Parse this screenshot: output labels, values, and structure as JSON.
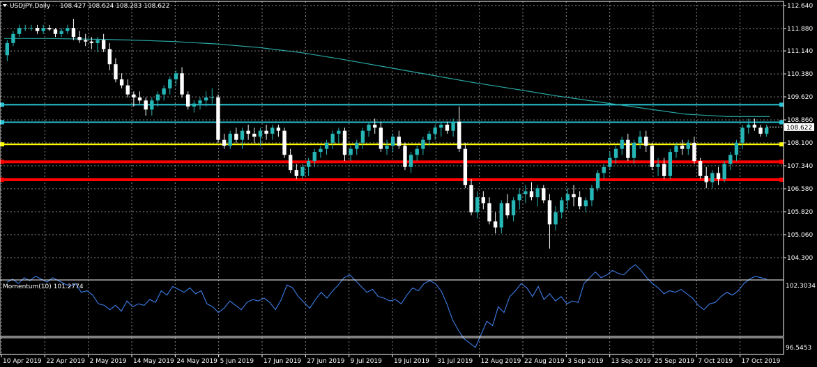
{
  "header": {
    "symbol_label": "USDJPY,Daily",
    "ohlc_label": "108.427 108.624 108.283 108.622"
  },
  "indicator": {
    "label": "Momentum(10) 101.2774",
    "ytick_top": "102.3034",
    "ytick_bottom": "96.5453"
  },
  "colors": {
    "background": "#000000",
    "grid": "#ffffff",
    "bull": "#26b6b6",
    "bear": "#ffffff",
    "ma": "#2aa9a6",
    "cyan_level": "#28c5d5",
    "yellow_level": "#ffff00",
    "red_level": "#ff0000",
    "momentum": "#3d7de8",
    "price_tag_bg": "#ffffff"
  },
  "chart_data": [
    {
      "type": "candlestick",
      "title": "USDJPY,Daily",
      "ylim": [
        104.3,
        112.64
      ],
      "y_ticks": [
        "112.640",
        "111.880",
        "111.140",
        "110.380",
        "109.620",
        "108.860",
        "108.100",
        "107.340",
        "106.580",
        "105.820",
        "105.060",
        "104.300"
      ],
      "x_ticks": [
        "10 Apr 2019",
        "22 Apr 2019",
        "2 May 2019",
        "14 May 2019",
        "24 May 2019",
        "5 Jun 2019",
        "17 Jun 2019",
        "27 Jun 2019",
        "9 Jul 2019",
        "19 Jul 2019",
        "31 Jul 2019",
        "12 Aug 2019",
        "22 Aug 2019",
        "3 Sep 2019",
        "13 Sep 2019",
        "25 Sep 2019",
        "7 Oct 2019",
        "17 Oct 2019"
      ],
      "current_price": "108.622",
      "moving_average": [
        111.55,
        111.55,
        111.53,
        111.5,
        111.45,
        111.37,
        111.25,
        111.08,
        110.85,
        110.6,
        110.35,
        110.1,
        109.88,
        109.65,
        109.45,
        109.25,
        109.05,
        108.97,
        108.97
      ],
      "horizontal_levels": [
        {
          "price": 109.36,
          "color": "cyan"
        },
        {
          "price": 108.78,
          "color": "cyan"
        },
        {
          "price": 108.05,
          "color": "yellow"
        },
        {
          "price": 107.47,
          "color": "red"
        },
        {
          "price": 106.88,
          "color": "red"
        }
      ],
      "candles": [
        [
          111.0,
          111.5,
          110.8,
          111.4
        ],
        [
          111.4,
          111.8,
          111.3,
          111.7
        ],
        [
          111.7,
          112.0,
          111.6,
          111.9
        ],
        [
          111.9,
          112.0,
          111.8,
          111.9
        ],
        [
          111.9,
          112.0,
          111.8,
          111.9
        ],
        [
          111.9,
          112.0,
          111.7,
          111.8
        ],
        [
          111.8,
          112.0,
          111.7,
          111.9
        ],
        [
          111.9,
          112.0,
          111.8,
          111.85
        ],
        [
          111.85,
          111.9,
          111.6,
          111.7
        ],
        [
          111.7,
          111.9,
          111.6,
          111.8
        ],
        [
          111.8,
          112.0,
          111.7,
          111.9
        ],
        [
          111.9,
          112.2,
          111.5,
          111.6
        ],
        [
          111.6,
          111.8,
          111.4,
          111.5
        ],
        [
          111.5,
          111.7,
          111.3,
          111.45
        ],
        [
          111.45,
          111.6,
          111.2,
          111.4
        ],
        [
          111.4,
          111.6,
          111.1,
          111.5
        ],
        [
          111.5,
          111.7,
          111.1,
          111.2
        ],
        [
          111.2,
          111.4,
          110.5,
          110.7
        ],
        [
          110.7,
          110.9,
          110.1,
          110.2
        ],
        [
          110.2,
          110.4,
          109.9,
          110.0
        ],
        [
          110.0,
          110.2,
          109.6,
          109.7
        ],
        [
          109.7,
          109.8,
          109.3,
          109.6
        ],
        [
          109.6,
          109.8,
          109.4,
          109.5
        ],
        [
          109.5,
          109.6,
          109.0,
          109.2
        ],
        [
          109.2,
          109.6,
          109.0,
          109.5
        ],
        [
          109.5,
          109.8,
          109.3,
          109.7
        ],
        [
          109.7,
          110.0,
          109.5,
          109.9
        ],
        [
          109.9,
          110.3,
          109.7,
          110.2
        ],
        [
          110.2,
          110.5,
          110.0,
          110.4
        ],
        [
          110.4,
          110.6,
          109.6,
          109.7
        ],
        [
          109.7,
          109.8,
          109.2,
          109.3
        ],
        [
          109.3,
          109.5,
          109.1,
          109.4
        ],
        [
          109.4,
          109.6,
          109.2,
          109.5
        ],
        [
          109.5,
          109.8,
          109.3,
          109.6
        ],
        [
          109.6,
          109.9,
          109.4,
          109.6
        ],
        [
          109.6,
          109.7,
          108.1,
          108.2
        ],
        [
          108.2,
          108.4,
          107.9,
          108.0
        ],
        [
          108.0,
          108.5,
          107.9,
          108.4
        ],
        [
          108.4,
          108.6,
          108.1,
          108.2
        ],
        [
          108.2,
          108.6,
          107.9,
          108.5
        ],
        [
          108.5,
          108.7,
          108.2,
          108.4
        ],
        [
          108.4,
          108.6,
          108.1,
          108.3
        ],
        [
          108.3,
          108.6,
          108.0,
          108.5
        ],
        [
          108.5,
          108.7,
          108.2,
          108.4
        ],
        [
          108.4,
          108.7,
          108.2,
          108.6
        ],
        [
          108.6,
          108.7,
          108.3,
          108.5
        ],
        [
          108.5,
          108.6,
          107.6,
          107.7
        ],
        [
          107.7,
          107.9,
          107.1,
          107.2
        ],
        [
          107.2,
          107.4,
          106.9,
          107.0
        ],
        [
          107.0,
          107.4,
          106.9,
          107.3
        ],
        [
          107.3,
          107.6,
          107.0,
          107.5
        ],
        [
          107.5,
          107.9,
          107.3,
          107.8
        ],
        [
          107.8,
          108.0,
          107.6,
          107.9
        ],
        [
          107.9,
          108.2,
          107.7,
          108.1
        ],
        [
          108.1,
          108.5,
          107.9,
          108.4
        ],
        [
          108.4,
          108.6,
          108.1,
          108.5
        ],
        [
          108.5,
          108.6,
          107.5,
          107.7
        ],
        [
          107.7,
          108.0,
          107.5,
          107.9
        ],
        [
          107.9,
          108.2,
          107.7,
          108.1
        ],
        [
          108.1,
          108.6,
          107.9,
          108.5
        ],
        [
          108.5,
          108.8,
          108.3,
          108.7
        ],
        [
          108.7,
          108.9,
          108.4,
          108.6
        ],
        [
          108.6,
          108.8,
          107.8,
          107.9
        ],
        [
          107.9,
          108.2,
          107.7,
          108.0
        ],
        [
          108.0,
          108.4,
          107.8,
          108.3
        ],
        [
          108.3,
          108.5,
          107.9,
          108.0
        ],
        [
          108.0,
          108.1,
          107.2,
          107.3
        ],
        [
          107.3,
          107.8,
          107.1,
          107.7
        ],
        [
          107.7,
          108.0,
          107.5,
          107.9
        ],
        [
          107.9,
          108.3,
          107.7,
          108.2
        ],
        [
          108.2,
          108.5,
          108.0,
          108.4
        ],
        [
          108.4,
          108.7,
          108.2,
          108.6
        ],
        [
          108.6,
          108.8,
          108.3,
          108.7
        ],
        [
          108.7,
          108.8,
          108.4,
          108.5
        ],
        [
          108.5,
          108.9,
          108.3,
          108.8
        ],
        [
          108.8,
          109.3,
          107.8,
          107.9
        ],
        [
          107.9,
          108.1,
          106.6,
          106.7
        ],
        [
          106.7,
          106.9,
          105.7,
          105.8
        ],
        [
          105.8,
          106.5,
          105.6,
          106.3
        ],
        [
          106.3,
          106.5,
          105.9,
          106.1
        ],
        [
          106.1,
          106.3,
          105.4,
          105.5
        ],
        [
          105.5,
          105.8,
          105.1,
          105.3
        ],
        [
          105.3,
          106.2,
          105.1,
          106.1
        ],
        [
          106.1,
          106.4,
          105.6,
          105.7
        ],
        [
          105.7,
          106.3,
          105.5,
          106.2
        ],
        [
          106.2,
          106.6,
          105.9,
          106.4
        ],
        [
          106.4,
          106.7,
          106.1,
          106.5
        ],
        [
          106.5,
          106.8,
          106.2,
          106.3
        ],
        [
          106.3,
          106.7,
          106.0,
          106.6
        ],
        [
          106.6,
          106.7,
          106.1,
          106.2
        ],
        [
          106.2,
          106.4,
          104.6,
          105.4
        ],
        [
          105.4,
          106.0,
          105.2,
          105.8
        ],
        [
          105.8,
          106.3,
          105.6,
          106.2
        ],
        [
          106.2,
          106.6,
          105.9,
          106.4
        ],
        [
          106.4,
          106.7,
          106.0,
          106.3
        ],
        [
          106.3,
          106.5,
          105.9,
          106.0
        ],
        [
          106.0,
          106.3,
          105.8,
          106.2
        ],
        [
          106.2,
          106.7,
          106.0,
          106.6
        ],
        [
          106.6,
          107.2,
          106.5,
          107.1
        ],
        [
          107.1,
          107.4,
          106.9,
          107.3
        ],
        [
          107.3,
          107.8,
          107.2,
          107.6
        ],
        [
          107.6,
          108.0,
          107.4,
          107.9
        ],
        [
          107.9,
          108.3,
          107.7,
          108.2
        ],
        [
          108.2,
          108.4,
          107.5,
          107.6
        ],
        [
          107.6,
          108.2,
          107.4,
          108.1
        ],
        [
          108.1,
          108.5,
          107.9,
          108.3
        ],
        [
          108.3,
          108.5,
          107.8,
          108.0
        ],
        [
          108.0,
          108.1,
          107.2,
          107.3
        ],
        [
          107.3,
          107.6,
          107.0,
          107.4
        ],
        [
          107.4,
          107.6,
          106.9,
          107.0
        ],
        [
          107.0,
          107.9,
          106.9,
          107.8
        ],
        [
          107.8,
          108.1,
          107.6,
          108.0
        ],
        [
          108.0,
          108.2,
          107.7,
          107.9
        ],
        [
          107.9,
          108.2,
          107.7,
          108.1
        ],
        [
          108.1,
          108.3,
          107.4,
          107.5
        ],
        [
          107.5,
          107.6,
          106.9,
          107.0
        ],
        [
          107.0,
          107.3,
          106.6,
          106.8
        ],
        [
          106.8,
          107.2,
          106.6,
          107.1
        ],
        [
          107.1,
          107.3,
          106.7,
          106.9
        ],
        [
          106.9,
          107.5,
          106.8,
          107.4
        ],
        [
          107.4,
          107.8,
          107.2,
          107.7
        ],
        [
          107.7,
          108.2,
          107.5,
          108.1
        ],
        [
          108.1,
          108.7,
          107.9,
          108.6
        ],
        [
          108.6,
          108.9,
          108.4,
          108.7
        ],
        [
          108.7,
          108.9,
          108.5,
          108.6
        ],
        [
          108.6,
          108.7,
          108.3,
          108.4
        ],
        [
          108.4,
          108.7,
          108.3,
          108.6
        ]
      ]
    },
    {
      "type": "line",
      "title": "Momentum(10) 101.2774",
      "ylim": [
        96.5453,
        102.3034
      ],
      "series": [
        {
          "values": [
            101.1,
            101.3,
            101.0,
            101.4,
            101.2,
            101.5,
            101.3,
            101.1,
            101.4,
            101.2,
            101.0,
            100.8,
            101.0,
            100.4,
            100.5,
            100.2,
            99.6,
            99.5,
            99.2,
            99.5,
            99.1,
            99.8,
            99.4,
            99.6,
            99.5,
            99.9,
            99.7,
            100.5,
            100.2,
            100.8,
            100.6,
            100.4,
            100.7,
            100.3,
            100.5,
            99.6,
            99.4,
            99.0,
            99.3,
            99.8,
            99.5,
            99.2,
            99.7,
            99.9,
            99.8,
            100.0,
            99.7,
            99.2,
            99.9,
            100.9,
            100.7,
            100.1,
            99.7,
            99.3,
            99.9,
            100.4,
            100.0,
            100.5,
            100.9,
            101.4,
            101.6,
            101.2,
            100.8,
            100.4,
            100.6,
            100.1,
            100.0,
            99.8,
            99.9,
            99.6,
            100.2,
            100.7,
            100.5,
            101.0,
            101.2,
            101.0,
            100.5,
            99.6,
            98.5,
            97.8,
            97.2,
            96.9,
            96.6,
            97.5,
            98.4,
            98.1,
            99.4,
            99.0,
            100.1,
            100.5,
            101.0,
            100.7,
            100.1,
            100.8,
            99.9,
            100.3,
            99.8,
            100.1,
            99.6,
            99.8,
            99.7,
            101.0,
            101.4,
            101.8,
            101.4,
            101.6,
            101.9,
            101.7,
            101.6,
            102.0,
            102.3,
            101.9,
            101.4,
            101.0,
            100.7,
            100.3,
            100.5,
            100.4,
            100.6,
            100.3,
            100.0,
            99.5,
            99.2,
            99.6,
            99.7,
            100.1,
            100.4,
            100.2,
            100.5,
            101.0,
            101.3,
            101.5,
            101.4,
            101.3
          ]
        }
      ]
    }
  ]
}
